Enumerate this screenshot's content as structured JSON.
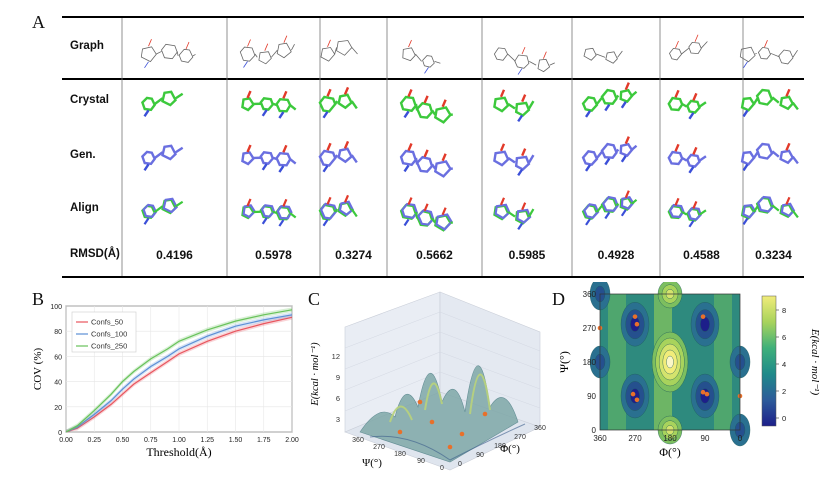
{
  "panels": {
    "a": "A",
    "b": "B",
    "c": "C",
    "d": "D"
  },
  "table": {
    "row_labels": [
      "Graph",
      "Crystal",
      "Gen.",
      "Align",
      "RMSD(Å)"
    ],
    "rmsd_values": [
      "0.4196",
      "0.5978",
      "0.3274",
      "0.5662",
      "0.5985",
      "0.4928",
      "0.4588",
      "0.3234"
    ]
  },
  "colors": {
    "crystal": "#3cc93c",
    "generated": "#6a6fe0",
    "heteroatom_red": "#e23a2a",
    "heteroatom_blue": "#3b4fd8",
    "conf50": "#e8555e",
    "conf100": "#5b8fd6",
    "conf250": "#68c25a"
  },
  "chart_data": [
    {
      "type": "line",
      "xlabel": "Threshold(Å)",
      "ylabel": "COV (%)",
      "xlim": [
        0,
        2.0
      ],
      "ylim": [
        0,
        100
      ],
      "x_ticks": [
        "0.00",
        "0.25",
        "0.50",
        "0.75",
        "1.00",
        "1.25",
        "1.50",
        "1.75",
        "2.00"
      ],
      "y_ticks": [
        "0",
        "20",
        "40",
        "60",
        "80",
        "100"
      ],
      "legend_position": "top-left",
      "grid": true,
      "x": [
        0.0,
        0.1,
        0.25,
        0.4,
        0.5,
        0.6,
        0.75,
        0.9,
        1.0,
        1.25,
        1.5,
        1.75,
        2.0
      ],
      "series": [
        {
          "name": "Confs_50",
          "values": [
            0,
            3,
            12,
            22,
            30,
            38,
            47,
            56,
            62,
            72,
            80,
            86,
            91
          ]
        },
        {
          "name": "Confs_100",
          "values": [
            0,
            4,
            14,
            25,
            34,
            42,
            52,
            60,
            66,
            76,
            84,
            89,
            93
          ]
        },
        {
          "name": "Confs_250",
          "values": [
            0,
            5,
            17,
            30,
            40,
            48,
            58,
            66,
            72,
            81,
            88,
            93,
            97
          ]
        }
      ]
    },
    {
      "type": "surface",
      "zlabel": "E(kcal · mol⁻¹)",
      "xlabel": "Φ(°)",
      "ylabel": "Ψ(°)",
      "z_ticks": [
        "3",
        "6",
        "9",
        "12"
      ],
      "phi_ticks": [
        "0",
        "90",
        "180",
        "270",
        "360"
      ],
      "psi_ticks": [
        "0",
        "90",
        "180",
        "270",
        "360"
      ]
    },
    {
      "type": "heatmap",
      "xlabel": "Φ(°)",
      "ylabel": "Ψ(°)",
      "x_ticks": [
        "360",
        "270",
        "180",
        "90",
        "0"
      ],
      "y_ticks": [
        "0",
        "90",
        "180",
        "270",
        "360"
      ],
      "colorbar_label": "E(kcal · mol⁻¹)",
      "colorbar_ticks": [
        "0",
        "2",
        "4",
        "6",
        "8"
      ],
      "minima_points": [
        [
          360,
          270
        ],
        [
          270,
          300
        ],
        [
          265,
          280
        ],
        [
          95,
          300
        ],
        [
          275,
          95
        ],
        [
          265,
          80
        ],
        [
          95,
          100
        ],
        [
          85,
          95
        ],
        [
          0,
          90
        ]
      ]
    }
  ]
}
